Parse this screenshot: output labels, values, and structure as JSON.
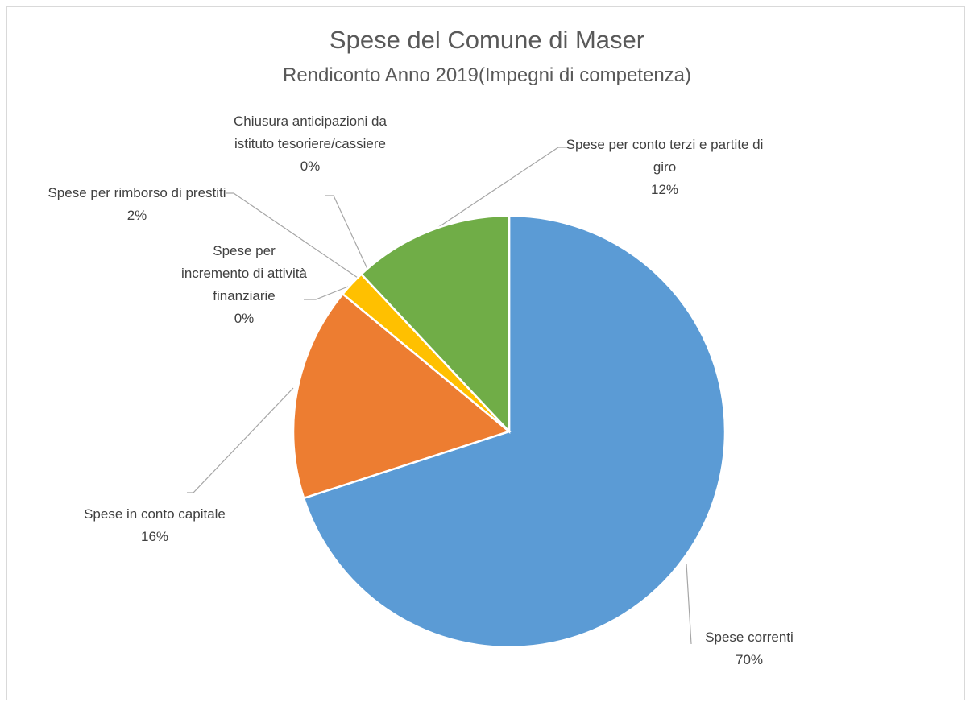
{
  "chart_data": {
    "type": "pie",
    "title": "Spese del Comune di Maser",
    "subtitle": "Rendiconto Anno 2019(Impegni di competenza)",
    "categories": [
      "Spese correnti",
      "Spese in conto capitale",
      "Spese per incremento di attività finanziarie",
      "Spese per rimborso di prestiti",
      "Chiusura anticipazioni da istituto tesoriere/cassiere",
      "Spese per conto terzi e partite di giro"
    ],
    "values": [
      70,
      16,
      0,
      2,
      0,
      12
    ],
    "value_labels": [
      "70%",
      "16%",
      "0%",
      "2%",
      "0%",
      "12%"
    ],
    "colors": [
      "#5b9bd5",
      "#ed7d31",
      "#a5a5a5",
      "#ffc000",
      "#4472c4",
      "#70ad47"
    ]
  }
}
